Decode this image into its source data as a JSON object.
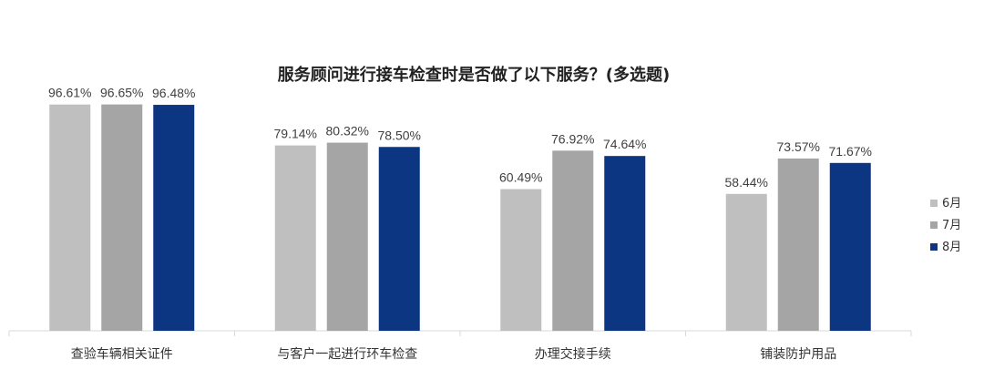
{
  "chart_data": {
    "type": "bar",
    "title": "服务顾问进行接车检查时是否做了以下服务？(多选题)",
    "categories": [
      "查验车辆相关证件",
      "与客户一起进行环车检查",
      "办理交接手续",
      "铺装防护用品"
    ],
    "series": [
      {
        "name": "6月",
        "color": "#bfbfbf",
        "values": [
          96.61,
          79.14,
          60.49,
          58.44
        ],
        "labels": [
          "96.61%",
          "79.14%",
          "60.49%",
          "58.44%"
        ]
      },
      {
        "name": "7月",
        "color": "#a5a5a5",
        "values": [
          96.65,
          80.32,
          76.92,
          73.57
        ],
        "labels": [
          "96.65%",
          "80.32%",
          "76.92%",
          "73.57%"
        ]
      },
      {
        "name": "8月",
        "color": "#0c3682",
        "values": [
          96.48,
          78.5,
          74.64,
          71.67
        ],
        "labels": [
          "96.48%",
          "78.50%",
          "74.64%",
          "71.67%"
        ]
      }
    ],
    "ylim": [
      0,
      100
    ],
    "grid": false,
    "legend": "right"
  }
}
